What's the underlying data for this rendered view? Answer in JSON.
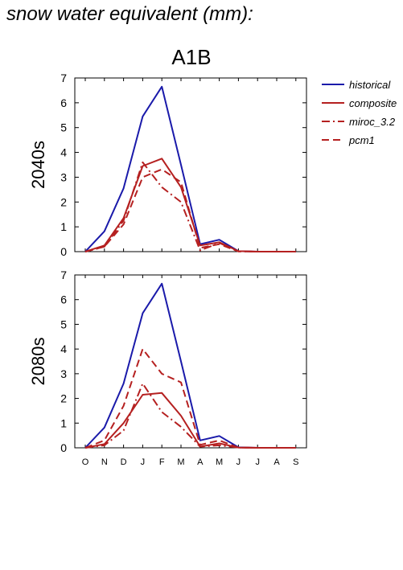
{
  "title": "snow water equivalent (mm):",
  "chart_data": {
    "type": "line",
    "title": "A1B",
    "x": [
      "O",
      "N",
      "D",
      "J",
      "F",
      "M",
      "A",
      "M",
      "J",
      "J",
      "A",
      "S"
    ],
    "ylim": [
      0,
      7
    ],
    "yticks": [
      0,
      1,
      2,
      3,
      4,
      5,
      6,
      7
    ],
    "legend": {
      "placement": "right",
      "entries": [
        "historical",
        "composite",
        "miroc_3.2",
        "pcm1"
      ]
    },
    "panels": [
      {
        "ylabel": "2040s",
        "series": [
          {
            "name": "historical",
            "color": "#1a1aaa",
            "style": "solid",
            "values": [
              0,
              0.82,
              2.55,
              5.45,
              6.65,
              3.5,
              0.3,
              0.48,
              0.02,
              0,
              0,
              0
            ]
          },
          {
            "name": "composite",
            "color": "#b52020",
            "style": "solid",
            "values": [
              0,
              0.25,
              1.35,
              3.45,
              3.75,
              2.6,
              0.25,
              0.38,
              0.02,
              0,
              0,
              0
            ]
          },
          {
            "name": "miroc_3.2",
            "color": "#b52020",
            "style": "dashdot",
            "values": [
              0,
              0.2,
              1.25,
              3.6,
              2.6,
              2.0,
              0.05,
              0.35,
              0.01,
              0,
              0,
              0
            ]
          },
          {
            "name": "pcm1",
            "color": "#b52020",
            "style": "dashed",
            "values": [
              0,
              0.2,
              1.1,
              3.0,
              3.32,
              2.8,
              0.15,
              0.3,
              0.01,
              0,
              0,
              0
            ]
          }
        ]
      },
      {
        "ylabel": "2080s",
        "series": [
          {
            "name": "historical",
            "color": "#1a1aaa",
            "style": "solid",
            "values": [
              0,
              0.82,
              2.6,
              5.45,
              6.65,
              3.5,
              0.3,
              0.48,
              0.02,
              0,
              0,
              0
            ]
          },
          {
            "name": "composite",
            "color": "#b52020",
            "style": "solid",
            "values": [
              0,
              0.15,
              1.0,
              2.15,
              2.22,
              1.3,
              0.05,
              0.18,
              0.01,
              0,
              0,
              0
            ]
          },
          {
            "name": "miroc_3.2",
            "color": "#b52020",
            "style": "dashdot",
            "values": [
              0,
              0.1,
              0.7,
              2.6,
              1.45,
              0.85,
              0.05,
              0.1,
              0.01,
              0,
              0,
              0
            ]
          },
          {
            "name": "pcm1",
            "color": "#b52020",
            "style": "dashed",
            "values": [
              0,
              0.3,
              1.7,
              4.0,
              3.0,
              2.65,
              0.12,
              0.3,
              0.01,
              0,
              0,
              0
            ]
          }
        ]
      }
    ]
  }
}
